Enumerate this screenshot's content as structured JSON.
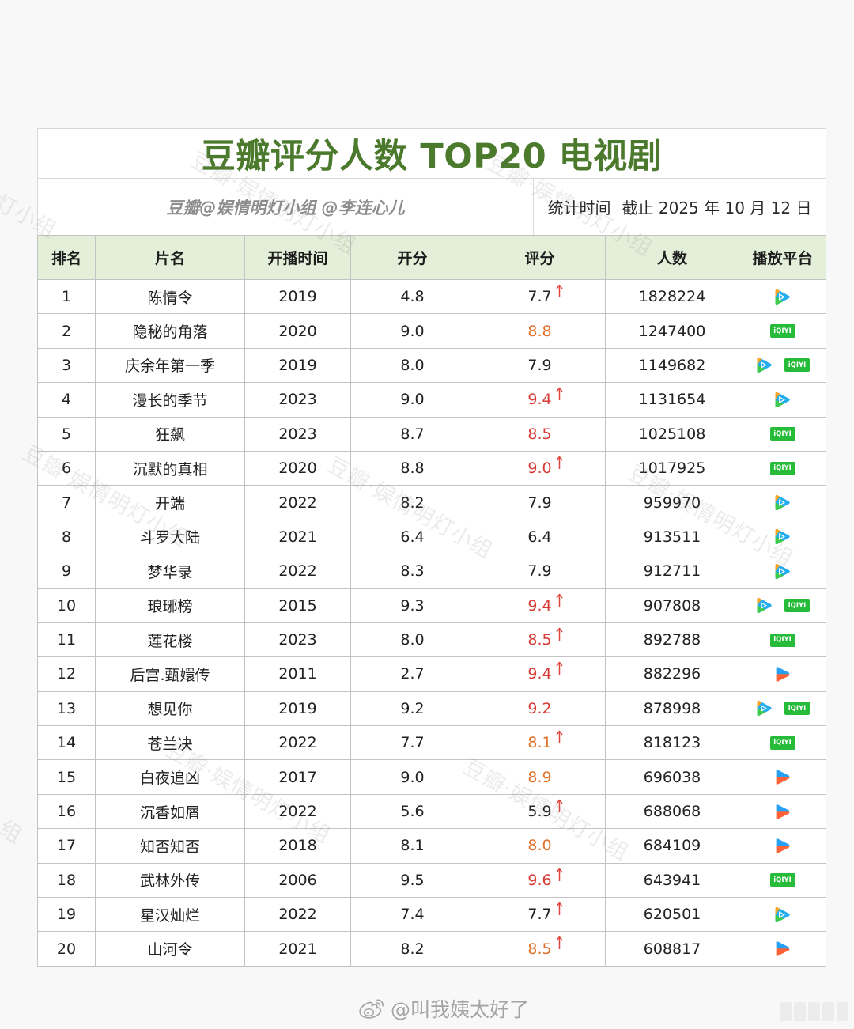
{
  "chart_data": {
    "type": "table",
    "title": "豆瓣评分人数 TOP20 电视剧",
    "credit": "豆瓣@娱情明灯小组 @李连心儿",
    "stat_time_label": "统计时间",
    "stat_time_value": "截止 2025 年 10 月 12 日",
    "columns": [
      "排名",
      "片名",
      "开播时间",
      "开分",
      "评分",
      "人数",
      "播放平台"
    ],
    "rows": [
      {
        "rank": "1",
        "name": "陈情令",
        "year": "2019",
        "open_score": "4.8",
        "score": "7.7",
        "up": true,
        "score_color": "#222222",
        "count": "1828224",
        "platforms": [
          "tencent"
        ]
      },
      {
        "rank": "2",
        "name": "隐秘的角落",
        "year": "2020",
        "open_score": "9.0",
        "score": "8.8",
        "up": false,
        "score_color": "#e0702a",
        "count": "1247400",
        "platforms": [
          "iqiyi"
        ]
      },
      {
        "rank": "3",
        "name": "庆余年第一季",
        "year": "2019",
        "open_score": "8.0",
        "score": "7.9",
        "up": false,
        "score_color": "#222222",
        "count": "1149682",
        "platforms": [
          "tencent",
          "iqiyi"
        ]
      },
      {
        "rank": "4",
        "name": "漫长的季节",
        "year": "2023",
        "open_score": "9.0",
        "score": "9.4",
        "up": true,
        "score_color": "#d83a35",
        "count": "1131654",
        "platforms": [
          "tencent"
        ]
      },
      {
        "rank": "5",
        "name": "狂飙",
        "year": "2023",
        "open_score": "8.7",
        "score": "8.5",
        "up": false,
        "score_color": "#d83a35",
        "count": "1025108",
        "platforms": [
          "iqiyi"
        ]
      },
      {
        "rank": "6",
        "name": "沉默的真相",
        "year": "2020",
        "open_score": "8.8",
        "score": "9.0",
        "up": true,
        "score_color": "#d83a35",
        "count": "1017925",
        "platforms": [
          "iqiyi"
        ]
      },
      {
        "rank": "7",
        "name": "开端",
        "year": "2022",
        "open_score": "8.2",
        "score": "7.9",
        "up": false,
        "score_color": "#222222",
        "count": "959970",
        "platforms": [
          "tencent"
        ]
      },
      {
        "rank": "8",
        "name": "斗罗大陆",
        "year": "2021",
        "open_score": "6.4",
        "score": "6.4",
        "up": false,
        "score_color": "#222222",
        "count": "913511",
        "platforms": [
          "tencent"
        ]
      },
      {
        "rank": "9",
        "name": "梦华录",
        "year": "2022",
        "open_score": "8.3",
        "score": "7.9",
        "up": false,
        "score_color": "#222222",
        "count": "912711",
        "platforms": [
          "tencent"
        ]
      },
      {
        "rank": "10",
        "name": "琅琊榜",
        "year": "2015",
        "open_score": "9.3",
        "score": "9.4",
        "up": true,
        "score_color": "#d83a35",
        "count": "907808",
        "platforms": [
          "tencent",
          "iqiyi"
        ]
      },
      {
        "rank": "11",
        "name": "莲花楼",
        "year": "2023",
        "open_score": "8.0",
        "score": "8.5",
        "up": true,
        "score_color": "#d83a35",
        "count": "892788",
        "platforms": [
          "iqiyi"
        ]
      },
      {
        "rank": "12",
        "name": "后宫.甄嬛传",
        "year": "2011",
        "open_score": "2.7",
        "score": "9.4",
        "up": true,
        "score_color": "#d83a35",
        "count": "882296",
        "platforms": [
          "youku"
        ]
      },
      {
        "rank": "13",
        "name": "想见你",
        "year": "2019",
        "open_score": "9.2",
        "score": "9.2",
        "up": false,
        "score_color": "#d83a35",
        "count": "878998",
        "platforms": [
          "tencent",
          "iqiyi"
        ]
      },
      {
        "rank": "14",
        "name": "苍兰决",
        "year": "2022",
        "open_score": "7.7",
        "score": "8.1",
        "up": true,
        "score_color": "#e0702a",
        "count": "818123",
        "platforms": [
          "iqiyi"
        ]
      },
      {
        "rank": "15",
        "name": "白夜追凶",
        "year": "2017",
        "open_score": "9.0",
        "score": "8.9",
        "up": false,
        "score_color": "#e0702a",
        "count": "696038",
        "platforms": [
          "youku"
        ]
      },
      {
        "rank": "16",
        "name": "沉香如屑",
        "year": "2022",
        "open_score": "5.6",
        "score": "5.9",
        "up": true,
        "score_color": "#222222",
        "count": "688068",
        "platforms": [
          "youku"
        ]
      },
      {
        "rank": "17",
        "name": "知否知否",
        "year": "2018",
        "open_score": "8.1",
        "score": "8.0",
        "up": false,
        "score_color": "#e0702a",
        "count": "684109",
        "platforms": [
          "youku"
        ]
      },
      {
        "rank": "18",
        "name": "武林外传",
        "year": "2006",
        "open_score": "9.5",
        "score": "9.6",
        "up": true,
        "score_color": "#d83a35",
        "count": "643941",
        "platforms": [
          "iqiyi"
        ]
      },
      {
        "rank": "19",
        "name": "星汉灿烂",
        "year": "2022",
        "open_score": "7.4",
        "score": "7.7",
        "up": true,
        "score_color": "#222222",
        "count": "620501",
        "platforms": [
          "tencent"
        ]
      },
      {
        "rank": "20",
        "name": "山河令",
        "year": "2021",
        "open_score": "8.2",
        "score": "8.5",
        "up": true,
        "score_color": "#e0702a",
        "count": "608817",
        "platforms": [
          "youku"
        ]
      }
    ]
  },
  "logos": {
    "iqiyi_text": "iQIYI"
  },
  "watermark": {
    "text": "豆瓣·娱情明灯小组"
  },
  "footer": {
    "handle": "@叫我姨太好了"
  },
  "colors": {
    "title": "#4b7a2c",
    "header_bg": "#e3efd9",
    "rise_arrow": "#e2453c",
    "iqiyi_green": "#27bb3a"
  }
}
